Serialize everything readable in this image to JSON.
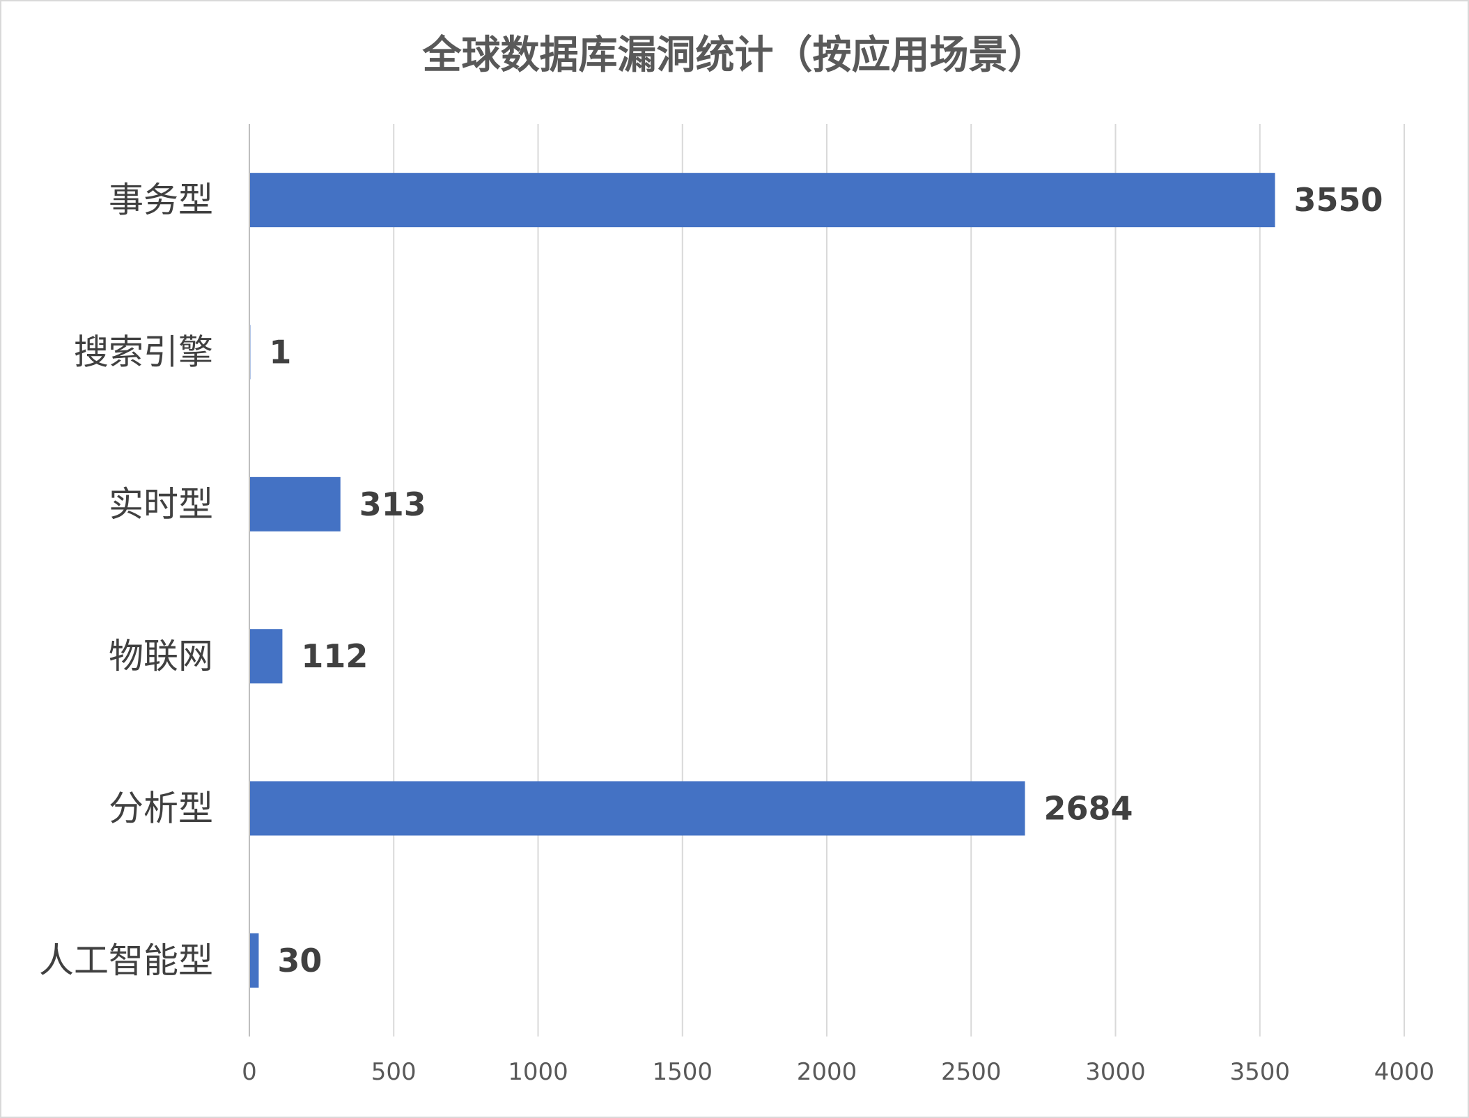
{
  "chart_data": {
    "type": "bar",
    "orientation": "horizontal",
    "title": "全球数据库漏洞统计（按应用场景）",
    "categories": [
      "事务型",
      "搜索引擎",
      "实时型",
      "物联网",
      "分析型",
      "人工智能型"
    ],
    "values": [
      3550,
      1,
      313,
      112,
      2684,
      30
    ],
    "xlabel": "",
    "ylabel": "",
    "xlim": [
      0,
      4000
    ],
    "xticks": [
      0,
      500,
      1000,
      1500,
      2000,
      2500,
      3000,
      3500,
      4000
    ],
    "grid": true,
    "legend": "none",
    "data_labels": true,
    "bar_color": "#4472c4"
  }
}
